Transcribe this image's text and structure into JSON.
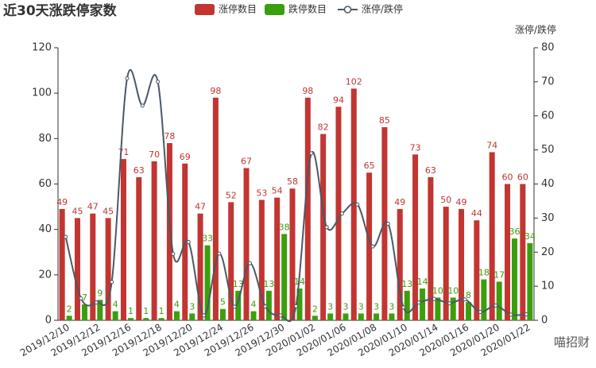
{
  "chart_data": {
    "type": "bar-line",
    "title": "近30天涨跌停家数",
    "categories": [
      "2019/12/10",
      null,
      "2019/12/12",
      null,
      "2019/12/16",
      null,
      "2019/12/18",
      null,
      "2019/12/20",
      null,
      "2019/12/24",
      null,
      "2019/12/26",
      null,
      "2019/12/30",
      null,
      "2020/01/02",
      null,
      "2020/01/06",
      null,
      "2020/01/08",
      null,
      "2020/01/10",
      null,
      "2020/01/14",
      null,
      "2020/01/16",
      null,
      "2020/01/20",
      null,
      "2020/01/22"
    ],
    "series": [
      {
        "name": "涨停数目",
        "color": "#c23531",
        "values": [
          49,
          45,
          47,
          45,
          71,
          63,
          70,
          78,
          69,
          47,
          98,
          52,
          67,
          53,
          54,
          58,
          98,
          82,
          94,
          102,
          65,
          85,
          49,
          73,
          63,
          50,
          49,
          44,
          74,
          60,
          60
        ]
      },
      {
        "name": "跌停数目",
        "color": "#3a9f0c",
        "values": [
          2,
          7,
          9,
          4,
          1,
          1,
          1,
          4,
          3,
          33,
          5,
          13,
          4,
          13,
          38,
          14,
          2,
          3,
          3,
          3,
          3,
          3,
          13,
          14,
          10,
          10,
          8,
          18,
          17,
          36,
          34
        ]
      },
      {
        "name": "涨停/跌停",
        "color": "#4b5866",
        "axis": "y2",
        "values": [
          24.5,
          6.43,
          5.22,
          11.25,
          71,
          63,
          70,
          19.5,
          23,
          1.42,
          19.6,
          4,
          16.75,
          4.08,
          1.42,
          4.14,
          49,
          27.33,
          31.33,
          34,
          21.67,
          28.33,
          3.77,
          5.21,
          6.3,
          5,
          6.13,
          2.44,
          4.35,
          1.67,
          1.76
        ]
      }
    ],
    "ylim": [
      0,
      120
    ],
    "yticks": [
      0,
      20,
      40,
      60,
      80,
      100,
      120
    ],
    "y2lim": [
      0,
      80
    ],
    "y2ticks": [
      0,
      10,
      20,
      30,
      40,
      50,
      60,
      70,
      80
    ],
    "y2label": "涨停/跌停",
    "watermark": "喵招财"
  }
}
